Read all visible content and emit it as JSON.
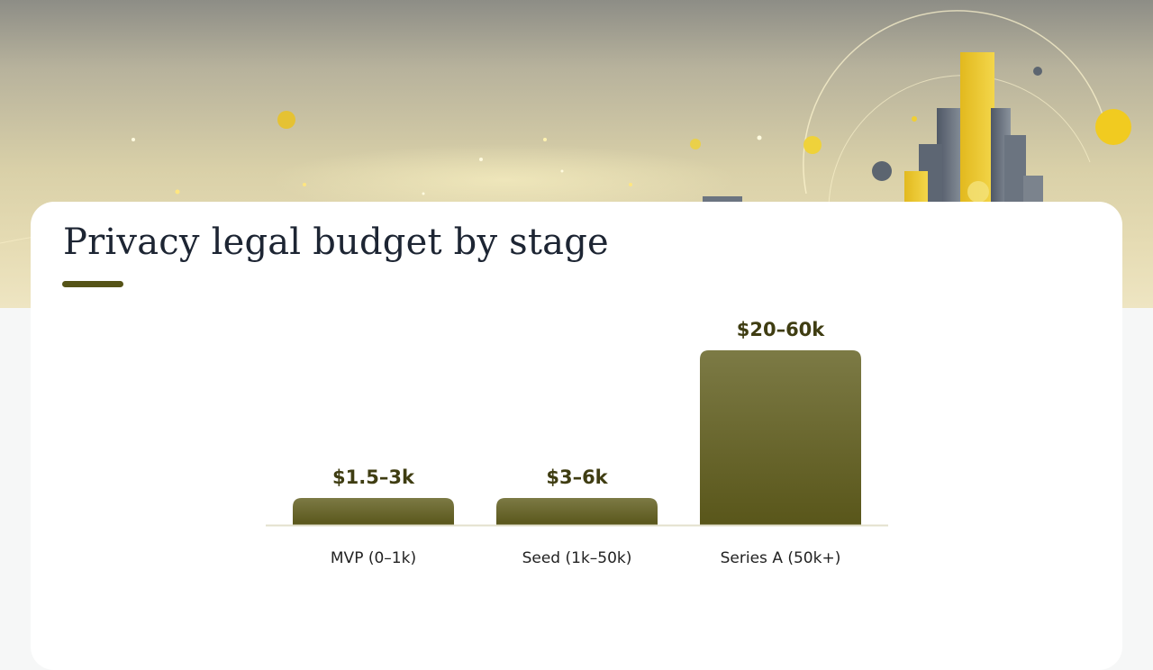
{
  "slide": {
    "title": "Privacy legal budget by stage"
  },
  "colors": {
    "accent": "#555317",
    "bar_top": "#7c7a45",
    "bar_bottom": "#59561a",
    "value_text": "#3f3d12",
    "baseline": "#e3e0cc",
    "title_text": "#1d2533"
  },
  "chart_data": {
    "type": "bar",
    "title": "Privacy legal budget by stage",
    "categories": [
      "MVP (0–1k)",
      "Seed (1k–50k)",
      "Series A (50k+)"
    ],
    "values": [
      3,
      6,
      60
    ],
    "value_labels": [
      "$1.5–3k",
      "$3–6k",
      "$20–60k"
    ],
    "xlabel": "",
    "ylabel": "",
    "ylim": [
      0,
      60
    ],
    "grid": false,
    "legend": "none"
  }
}
